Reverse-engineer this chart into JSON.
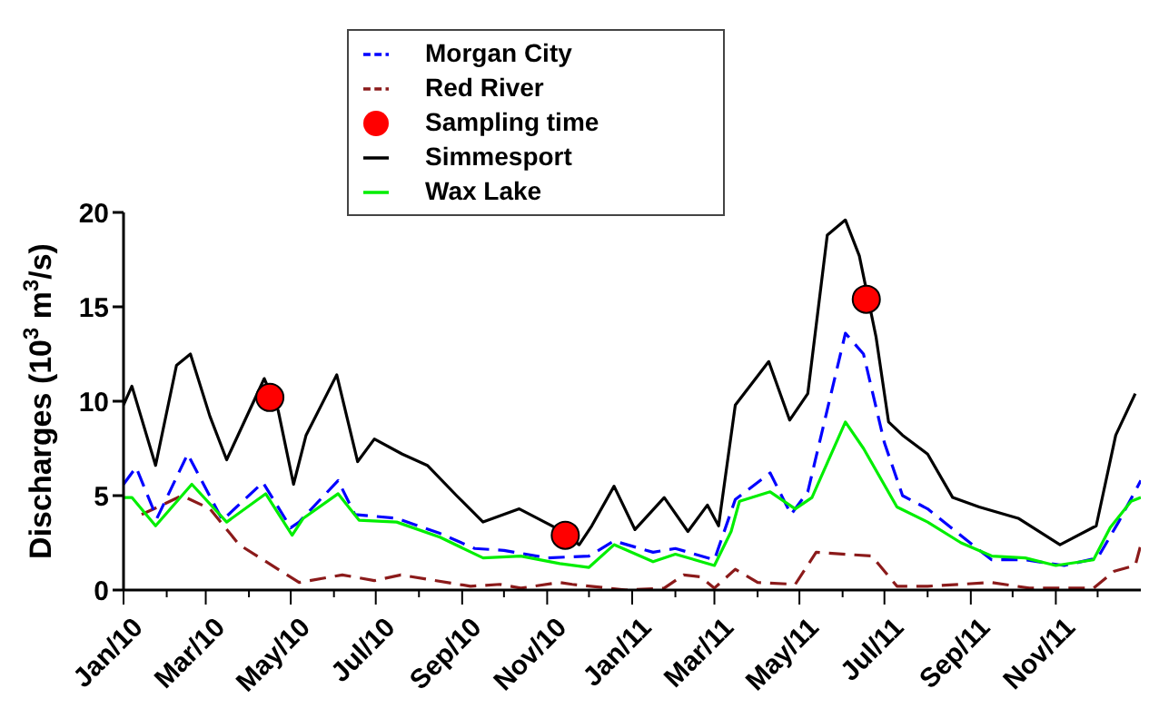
{
  "chart_data": {
    "type": "line",
    "ylabel": "Discharges (10$^{3}$ m$^{3}$/s)",
    "xlim": [
      "2010-01-01",
      "2012-01-01"
    ],
    "xticks": [
      {
        "value": "2010-01-01",
        "label": "Jan/10"
      },
      {
        "value": "2010-02-01",
        "label": null
      },
      {
        "value": "2010-03-01",
        "label": "Mar/10"
      },
      {
        "value": "2010-04-01",
        "label": null
      },
      {
        "value": "2010-05-01",
        "label": "May/10"
      },
      {
        "value": "2010-06-01",
        "label": null
      },
      {
        "value": "2010-07-01",
        "label": "Jul/10"
      },
      {
        "value": "2010-08-01",
        "label": null
      },
      {
        "value": "2010-09-01",
        "label": "Sep/10"
      },
      {
        "value": "2010-10-01",
        "label": null
      },
      {
        "value": "2010-11-01",
        "label": "Nov/10"
      },
      {
        "value": "2010-12-01",
        "label": null
      },
      {
        "value": "2011-01-01",
        "label": "Jan/11"
      },
      {
        "value": "2011-02-01",
        "label": null
      },
      {
        "value": "2011-03-01",
        "label": "Mar/11"
      },
      {
        "value": "2011-04-01",
        "label": null
      },
      {
        "value": "2011-05-01",
        "label": "May/11"
      },
      {
        "value": "2011-06-01",
        "label": null
      },
      {
        "value": "2011-07-01",
        "label": "Jul/11"
      },
      {
        "value": "2011-08-01",
        "label": null
      },
      {
        "value": "2011-09-01",
        "label": "Sep/11"
      },
      {
        "value": "2011-10-01",
        "label": null
      },
      {
        "value": "2011-11-01",
        "label": "Nov/11"
      },
      {
        "value": "2011-12-01",
        "label": null
      }
    ],
    "ylim": [
      0,
      20
    ],
    "yticks": [
      0,
      5,
      10,
      15,
      20
    ],
    "legend": "top",
    "series": [
      {
        "name": "Simmesport",
        "color": "#000000",
        "line_style": "solid",
        "marker": "none",
        "x": [
          "2010-01-01",
          "2010-01-07",
          "2010-01-24",
          "2010-02-08",
          "2010-02-18",
          "2010-03-04",
          "2010-03-16",
          "2010-04-12",
          "2010-04-22",
          "2010-05-03",
          "2010-05-12",
          "2010-06-03",
          "2010-06-18",
          "2010-06-30",
          "2010-07-20",
          "2010-08-07",
          "2010-08-28",
          "2010-09-16",
          "2010-10-12",
          "2010-11-07",
          "2010-11-24",
          "2010-12-03",
          "2010-12-19",
          "2011-01-03",
          "2011-01-24",
          "2011-02-10",
          "2011-02-24",
          "2011-03-04",
          "2011-03-16",
          "2011-04-09",
          "2011-04-24",
          "2011-05-07",
          "2011-05-21",
          "2011-06-03",
          "2011-06-13",
          "2011-06-25",
          "2011-07-04",
          "2011-07-14",
          "2011-08-01",
          "2011-08-19",
          "2011-09-07",
          "2011-10-05",
          "2011-11-04",
          "2011-11-30",
          "2011-12-14",
          "2011-12-28"
        ],
        "values": [
          9.8,
          10.8,
          6.6,
          11.9,
          12.5,
          9.2,
          6.9,
          11.2,
          9.5,
          5.6,
          8.2,
          11.4,
          6.8,
          8.0,
          7.2,
          6.6,
          5.0,
          3.6,
          4.3,
          3.3,
          2.4,
          3.4,
          5.5,
          3.2,
          4.9,
          3.1,
          4.5,
          3.4,
          9.8,
          12.1,
          9.0,
          10.4,
          18.8,
          19.6,
          17.7,
          13.4,
          8.9,
          8.2,
          7.2,
          4.9,
          4.4,
          3.8,
          2.4,
          3.4,
          8.2,
          10.4
        ]
      },
      {
        "name": "Red River",
        "color": "#8b1a1a",
        "line_style": "dashed",
        "marker": "none",
        "x": [
          "2010-01-14",
          "2010-02-12",
          "2010-03-04",
          "2010-03-25",
          "2010-05-07",
          "2010-06-07",
          "2010-06-30",
          "2010-07-19",
          "2010-09-07",
          "2010-09-28",
          "2010-10-13",
          "2010-11-10",
          "2010-11-19",
          "2010-12-28",
          "2011-01-24",
          "2011-02-07",
          "2011-02-19",
          "2011-03-01",
          "2011-03-16",
          "2011-04-01",
          "2011-04-28",
          "2011-05-13",
          "2011-06-22",
          "2011-07-10",
          "2011-08-01",
          "2011-09-16",
          "2011-10-13",
          "2011-11-28",
          "2011-12-13",
          "2011-12-28",
          "2012-01-01"
        ],
        "values": [
          4.0,
          5.0,
          4.3,
          2.4,
          0.4,
          0.8,
          0.5,
          0.8,
          0.2,
          0.3,
          0.1,
          0.4,
          0.3,
          0.0,
          0.1,
          0.8,
          0.7,
          0.1,
          1.1,
          0.4,
          0.3,
          2.0,
          1.8,
          0.2,
          0.2,
          0.4,
          0.1,
          0.1,
          1.0,
          1.3,
          2.4
        ]
      },
      {
        "name": "Morgan City",
        "color": "#0000ff",
        "line_style": "dashed",
        "marker": "none",
        "x": [
          "2010-01-01",
          "2010-01-10",
          "2010-01-25",
          "2010-02-16",
          "2010-03-13",
          "2010-04-11",
          "2010-05-01",
          "2010-05-07",
          "2010-06-04",
          "2010-06-16",
          "2010-07-16",
          "2010-08-16",
          "2010-09-10",
          "2010-10-01",
          "2010-11-01",
          "2010-12-01",
          "2010-12-19",
          "2011-01-16",
          "2011-02-01",
          "2011-03-01",
          "2011-03-16",
          "2011-04-10",
          "2011-04-25",
          "2011-05-07",
          "2011-06-03",
          "2011-06-16",
          "2011-07-01",
          "2011-07-14",
          "2011-08-01",
          "2011-08-28",
          "2011-09-16",
          "2011-10-10",
          "2011-11-07",
          "2011-12-01",
          "2011-12-16",
          "2012-01-01"
        ],
        "values": [
          5.6,
          6.5,
          3.8,
          7.2,
          3.7,
          5.7,
          3.3,
          3.6,
          5.8,
          4.0,
          3.8,
          3.0,
          2.2,
          2.1,
          1.7,
          1.8,
          2.6,
          2.0,
          2.2,
          1.6,
          4.8,
          6.2,
          4.0,
          5.2,
          13.6,
          12.5,
          7.8,
          5.0,
          4.3,
          2.7,
          1.6,
          1.6,
          1.3,
          1.7,
          3.6,
          5.8
        ]
      },
      {
        "name": "Wax Lake",
        "color": "#00ee00",
        "line_style": "solid",
        "marker": "none",
        "x": [
          "2010-01-01",
          "2010-01-07",
          "2010-01-24",
          "2010-02-19",
          "2010-03-16",
          "2010-04-13",
          "2010-05-02",
          "2010-05-10",
          "2010-06-04",
          "2010-06-19",
          "2010-07-16",
          "2010-08-16",
          "2010-09-16",
          "2010-10-13",
          "2010-11-10",
          "2010-12-01",
          "2010-12-19",
          "2011-01-16",
          "2011-02-01",
          "2011-03-01",
          "2011-03-13",
          "2011-03-19",
          "2011-04-10",
          "2011-04-28",
          "2011-05-10",
          "2011-06-03",
          "2011-06-16",
          "2011-07-10",
          "2011-08-01",
          "2011-08-25",
          "2011-09-16",
          "2011-10-10",
          "2011-11-01",
          "2011-11-28",
          "2011-12-10",
          "2011-12-25",
          "2012-01-01"
        ],
        "values": [
          4.9,
          4.9,
          3.4,
          5.6,
          3.6,
          5.1,
          2.9,
          3.8,
          5.1,
          3.7,
          3.6,
          2.8,
          1.7,
          1.8,
          1.4,
          1.2,
          2.4,
          1.5,
          1.9,
          1.3,
          3.1,
          4.7,
          5.2,
          4.3,
          4.9,
          8.9,
          7.5,
          4.4,
          3.6,
          2.5,
          1.8,
          1.7,
          1.3,
          1.6,
          3.3,
          4.7,
          4.9
        ]
      },
      {
        "name": "Sampling time",
        "type": "scatter",
        "color": "#ff0000",
        "marker": "circle",
        "x": [
          "2010-04-16",
          "2010-11-14",
          "2011-06-18"
        ],
        "values": [
          10.2,
          2.9,
          15.4
        ]
      }
    ]
  }
}
